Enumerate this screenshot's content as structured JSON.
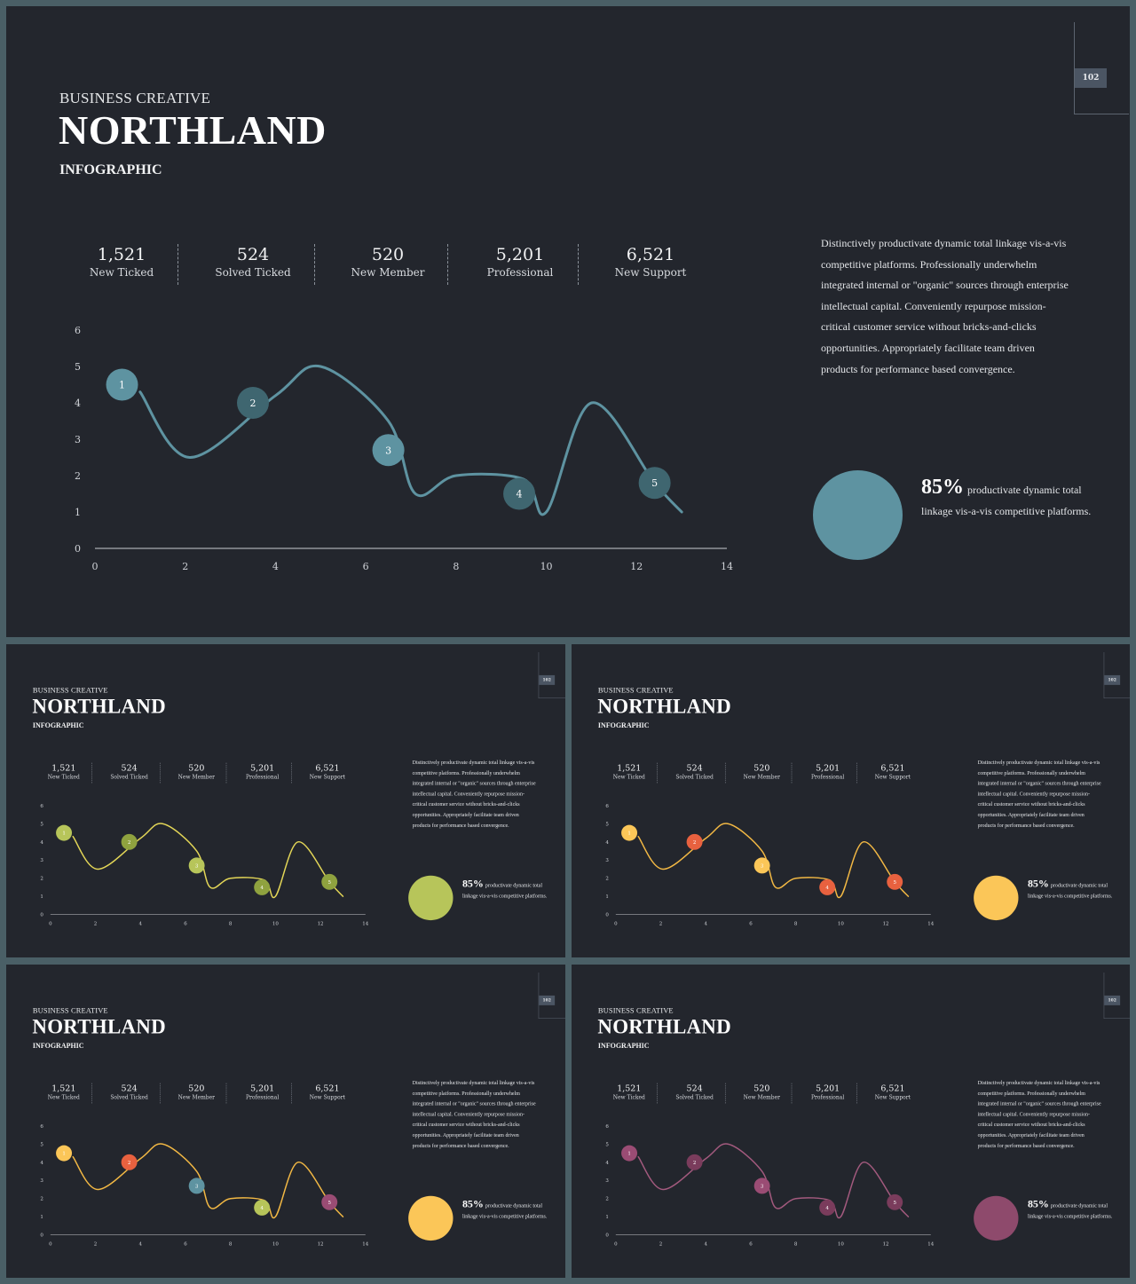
{
  "header": {
    "small_title": "BUSINESS CREATIVE",
    "big_title": "NORTHLAND",
    "subtitle": "INFOGRAPHIC",
    "page_number": "102"
  },
  "stats": [
    {
      "value": "1,521",
      "label": "New Ticked"
    },
    {
      "value": "524",
      "label": "Solved Ticked"
    },
    {
      "value": "520",
      "label": "New Member"
    },
    {
      "value": "5,201",
      "label": "Professional"
    },
    {
      "value": "6,521",
      "label": "New Support"
    }
  ],
  "description": "Distinctively productivate dynamic total linkage vis-a-vis competitive platforms. Professionally underwhelm integrated internal or \"organic\" sources through enterprise intellectual capital. Conveniently repurpose mission-critical customer service without bricks-and-clicks opportunities.  Appropriately facilitate team driven products for performance based convergence.",
  "highlight": {
    "percent": "85%",
    "text": "productivate dynamic total linkage vis-a-vis competitive platforms."
  },
  "chart_data": {
    "type": "line",
    "x_ticks": [
      0,
      2,
      4,
      6,
      8,
      10,
      12,
      14
    ],
    "y_ticks": [
      0,
      1,
      2,
      3,
      4,
      5,
      6
    ],
    "xlim": [
      0,
      14
    ],
    "ylim": [
      0,
      6
    ],
    "series": [
      {
        "x": [
          1,
          2.1,
          4,
          5,
          6.5,
          7.1,
          8,
          9.5,
          10,
          11,
          12.4,
          13
        ],
        "values": [
          4.3,
          2.5,
          4.2,
          5.0,
          3.5,
          1.5,
          2.0,
          1.9,
          1.0,
          4.0,
          1.8,
          1.0
        ]
      }
    ],
    "markers": [
      {
        "label": "1",
        "x": 0.6,
        "y": 4.5
      },
      {
        "label": "2",
        "x": 3.5,
        "y": 4.0
      },
      {
        "label": "3",
        "x": 6.5,
        "y": 2.7
      },
      {
        "label": "4",
        "x": 9.4,
        "y": 1.5
      },
      {
        "label": "5",
        "x": 12.4,
        "y": 1.8
      }
    ]
  },
  "themes": [
    {
      "line": "#5e93a1",
      "bubble": "#5e93a1",
      "markers": [
        "#5e93a1",
        "#3f6670",
        "#5e93a1",
        "#3f6670",
        "#3f6670"
      ]
    },
    {
      "line": "#e3d657",
      "bubble": "#b7c55a",
      "markers": [
        "#b7c55a",
        "#8fa23f",
        "#b7c55a",
        "#8fa23f",
        "#8fa23f"
      ]
    },
    {
      "line": "#f2b844",
      "bubble": "#fbc658",
      "markers": [
        "#fbc658",
        "#e8613f",
        "#fbc658",
        "#e8613f",
        "#e8613f"
      ]
    },
    {
      "line": "#f2b844",
      "bubble": "#fbc658",
      "markers": [
        "#fbc658",
        "#e8613f",
        "#5e93a1",
        "#b7c55a",
        "#9a4c74"
      ]
    },
    {
      "line": "#a35a7e",
      "bubble": "#8e4a6c",
      "markers": [
        "#9a4c74",
        "#7a3c5c",
        "#9a4c74",
        "#7a3c5c",
        "#7a3c5c"
      ]
    }
  ]
}
